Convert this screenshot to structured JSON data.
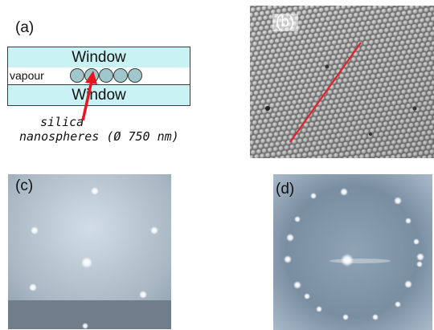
{
  "panels": {
    "a": {
      "label": "(a)",
      "window_top": "Window",
      "window_bottom": "Window",
      "vapour": "vapour",
      "annotation_line1": "silica",
      "annotation_line2": "nanospheres (Ø 750 nm)",
      "arrow_color": "#e8141e",
      "window_color": "#c8f2f4",
      "sphere_color": "#9fc7cc"
    },
    "b": {
      "label": "(b)",
      "line_color": "#e0222b"
    },
    "c": {
      "label": "(c)"
    },
    "d": {
      "label": "(d)"
    }
  }
}
